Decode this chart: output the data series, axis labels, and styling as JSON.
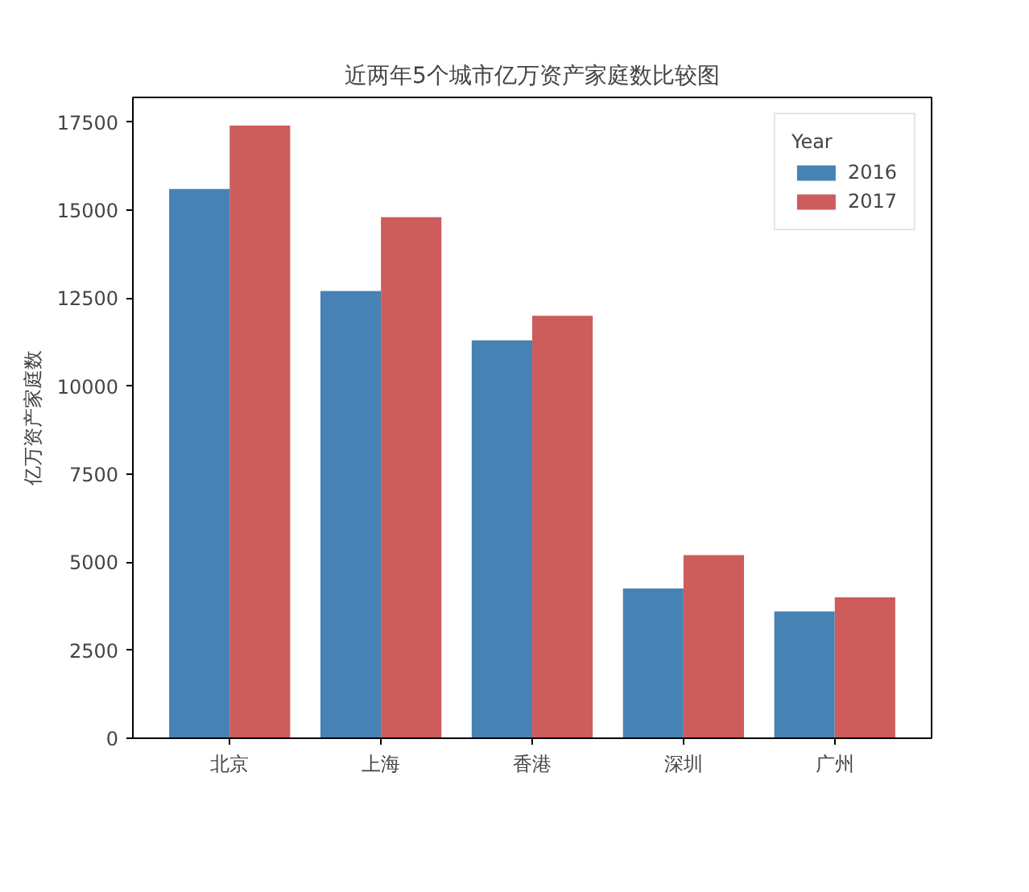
{
  "chart_data": {
    "type": "bar",
    "title": "近两年5个城市亿万资产家庭数比较图",
    "ylabel": "亿万资产家庭数",
    "legend_title": "Year",
    "categories": [
      "北京",
      "上海",
      "香港",
      "深圳",
      "广州"
    ],
    "series": [
      {
        "name": "2016",
        "color": "#4682b4",
        "values": [
          15600,
          12700,
          11300,
          4250,
          3600
        ]
      },
      {
        "name": "2017",
        "color": "#cd5c5c",
        "values": [
          17400,
          14800,
          12000,
          5200,
          4000
        ]
      }
    ],
    "ylim": [
      0,
      18200
    ],
    "yticks": [
      0,
      2500,
      5000,
      7500,
      10000,
      12500,
      15000,
      17500
    ],
    "grid": false,
    "legend": "top right"
  }
}
